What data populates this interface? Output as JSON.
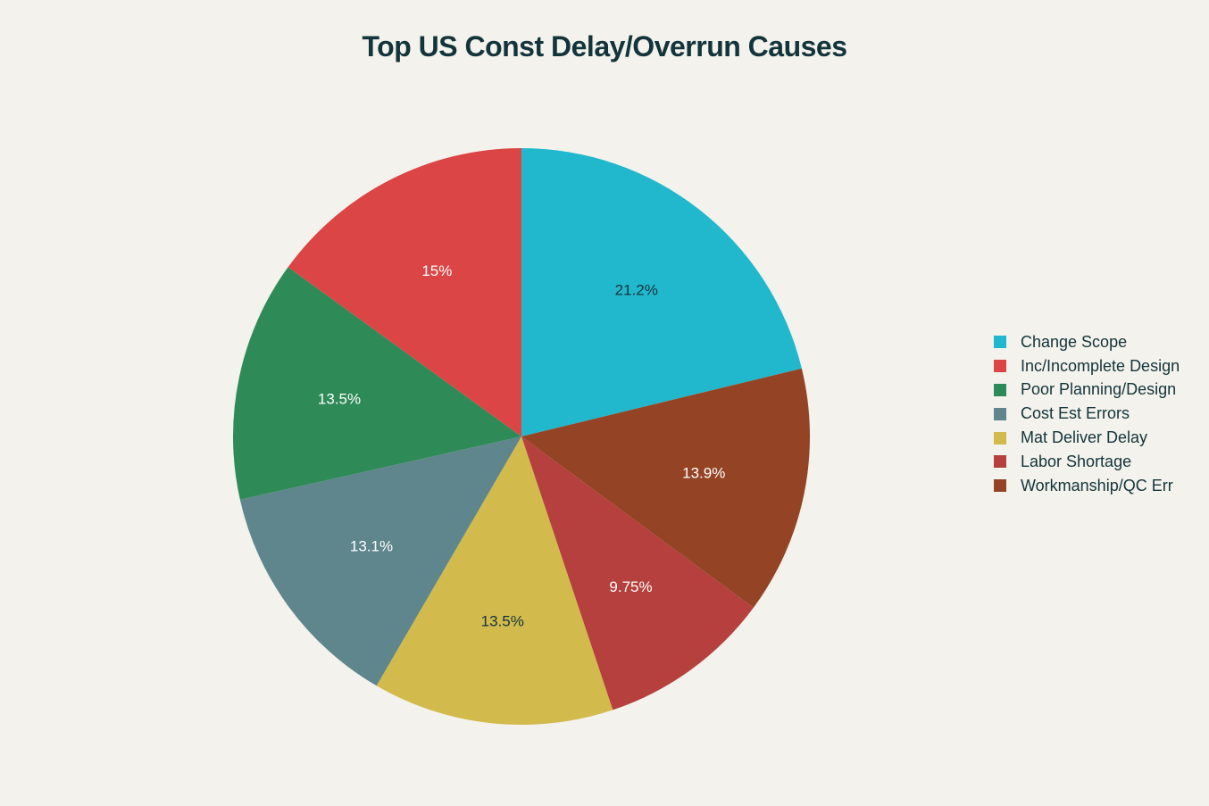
{
  "chart_data": {
    "type": "pie",
    "title": "Top US Const Delay/Overrun Causes",
    "legend_position": "right",
    "slices": [
      {
        "label": "Change Scope",
        "value": 21.2,
        "display": "21.2%",
        "color": "#21b8cd",
        "text_color": "#13343b"
      },
      {
        "label": "Workmanship/QC Err",
        "value": 13.9,
        "display": "13.9%",
        "color": "#944424",
        "text_color": "#ffffff"
      },
      {
        "label": "Labor Shortage",
        "value": 9.75,
        "display": "9.75%",
        "color": "#b5403d",
        "text_color": "#ffffff"
      },
      {
        "label": "Mat Deliver Delay",
        "value": 13.5,
        "display": "13.5%",
        "color": "#d2ba4c",
        "text_color": "#13343b"
      },
      {
        "label": "Cost Est Errors",
        "value": 13.1,
        "display": "13.1%",
        "color": "#5e868c",
        "text_color": "#ffffff"
      },
      {
        "label": "Poor Planning/Design",
        "value": 13.5,
        "display": "13.5%",
        "color": "#2e8b57",
        "text_color": "#ffffff"
      },
      {
        "label": "Inc/Incomplete Design",
        "value": 15.0,
        "display": "15%",
        "color": "#db4545",
        "text_color": "#ffffff"
      }
    ],
    "legend": [
      {
        "label": "Change Scope",
        "color": "#21b8cd"
      },
      {
        "label": "Inc/Incomplete Design",
        "color": "#db4545"
      },
      {
        "label": "Poor Planning/Design",
        "color": "#2e8b57"
      },
      {
        "label": "Cost Est Errors",
        "color": "#5e868c"
      },
      {
        "label": "Mat Deliver Delay",
        "color": "#d2ba4c"
      },
      {
        "label": "Labor Shortage",
        "color": "#b5403d"
      },
      {
        "label": "Workmanship/QC Err",
        "color": "#944424"
      }
    ]
  }
}
